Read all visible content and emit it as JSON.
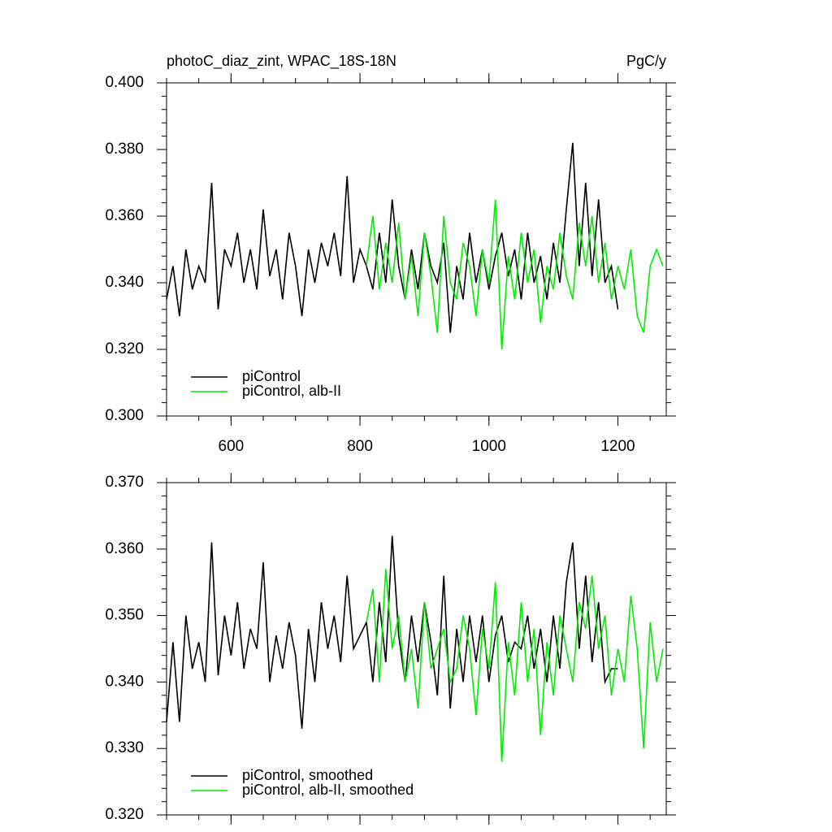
{
  "chart_data": [
    {
      "type": "line",
      "title": "photoC_diaz_zint, WPAC_18S-18N",
      "units": "PgC/y",
      "xlim": [
        500,
        1275
      ],
      "xticks": [
        600,
        800,
        1000,
        1200
      ],
      "xtick_labels": true,
      "ylim": [
        0.3,
        0.4
      ],
      "yticks": [
        {
          "value": 0.3,
          "label": "0.300"
        },
        {
          "value": 0.32,
          "label": "0.320"
        },
        {
          "value": 0.34,
          "label": "0.340"
        },
        {
          "value": 0.36,
          "label": "0.360"
        },
        {
          "value": 0.38,
          "label": "0.380"
        },
        {
          "value": 0.4,
          "label": "0.400"
        }
      ],
      "series": [
        {
          "name": "piControl",
          "color": "#000000",
          "x": [
            500,
            510,
            520,
            530,
            540,
            550,
            560,
            570,
            580,
            590,
            600,
            610,
            620,
            630,
            640,
            650,
            660,
            670,
            680,
            690,
            700,
            710,
            720,
            730,
            740,
            750,
            760,
            770,
            780,
            790,
            800,
            810,
            820,
            830,
            840,
            850,
            860,
            870,
            880,
            890,
            900,
            910,
            920,
            930,
            940,
            950,
            960,
            970,
            980,
            990,
            1000,
            1010,
            1020,
            1030,
            1040,
            1050,
            1060,
            1070,
            1080,
            1090,
            1100,
            1110,
            1120,
            1130,
            1140,
            1150,
            1160,
            1170,
            1180,
            1190,
            1200
          ],
          "values": [
            0.335,
            0.345,
            0.33,
            0.35,
            0.338,
            0.345,
            0.34,
            0.37,
            0.332,
            0.35,
            0.345,
            0.355,
            0.34,
            0.35,
            0.338,
            0.362,
            0.342,
            0.35,
            0.335,
            0.355,
            0.345,
            0.33,
            0.35,
            0.34,
            0.352,
            0.345,
            0.355,
            0.342,
            0.372,
            0.34,
            0.35,
            0.345,
            0.338,
            0.355,
            0.34,
            0.365,
            0.345,
            0.335,
            0.35,
            0.338,
            0.355,
            0.345,
            0.34,
            0.352,
            0.325,
            0.345,
            0.335,
            0.355,
            0.34,
            0.35,
            0.338,
            0.348,
            0.355,
            0.342,
            0.35,
            0.335,
            0.355,
            0.34,
            0.348,
            0.335,
            0.352,
            0.34,
            0.362,
            0.382,
            0.345,
            0.37,
            0.342,
            0.365,
            0.34,
            0.345,
            0.332
          ]
        },
        {
          "name": "piControl, alb-II",
          "color": "#00ee00",
          "x": [
            810,
            820,
            830,
            840,
            850,
            860,
            870,
            880,
            890,
            900,
            910,
            920,
            930,
            940,
            950,
            960,
            970,
            980,
            990,
            1000,
            1010,
            1020,
            1030,
            1040,
            1050,
            1060,
            1070,
            1080,
            1090,
            1100,
            1110,
            1120,
            1130,
            1140,
            1150,
            1160,
            1170,
            1180,
            1190,
            1200,
            1210,
            1220,
            1230,
            1240,
            1250,
            1260,
            1270
          ],
          "values": [
            0.345,
            0.36,
            0.338,
            0.352,
            0.34,
            0.358,
            0.335,
            0.348,
            0.33,
            0.355,
            0.342,
            0.325,
            0.36,
            0.34,
            0.335,
            0.352,
            0.345,
            0.33,
            0.35,
            0.34,
            0.365,
            0.32,
            0.348,
            0.335,
            0.355,
            0.34,
            0.35,
            0.328,
            0.345,
            0.338,
            0.355,
            0.342,
            0.335,
            0.358,
            0.345,
            0.36,
            0.34,
            0.352,
            0.335,
            0.345,
            0.338,
            0.35,
            0.33,
            0.325,
            0.345,
            0.35,
            0.345
          ]
        }
      ]
    },
    {
      "type": "line",
      "xlim": [
        500,
        1275
      ],
      "xticks": [
        600,
        800,
        1000,
        1200
      ],
      "xtick_labels": false,
      "ylim": [
        0.32,
        0.37
      ],
      "yticks": [
        {
          "value": 0.32,
          "label": "0.320"
        },
        {
          "value": 0.33,
          "label": "0.330"
        },
        {
          "value": 0.34,
          "label": "0.340"
        },
        {
          "value": 0.35,
          "label": "0.350"
        },
        {
          "value": 0.36,
          "label": "0.360"
        },
        {
          "value": 0.37,
          "label": "0.370"
        }
      ],
      "series": [
        {
          "name": "piControl, smoothed",
          "color": "#000000",
          "x": [
            500,
            510,
            520,
            530,
            540,
            550,
            560,
            570,
            580,
            590,
            600,
            610,
            620,
            630,
            640,
            650,
            660,
            670,
            680,
            690,
            700,
            710,
            720,
            730,
            740,
            750,
            760,
            770,
            780,
            790,
            800,
            810,
            820,
            830,
            840,
            850,
            860,
            870,
            880,
            890,
            900,
            910,
            920,
            930,
            940,
            950,
            960,
            970,
            980,
            990,
            1000,
            1010,
            1020,
            1030,
            1040,
            1050,
            1060,
            1070,
            1080,
            1090,
            1100,
            1110,
            1120,
            1130,
            1140,
            1150,
            1160,
            1170,
            1180,
            1190,
            1200
          ],
          "values": [
            0.334,
            0.346,
            0.334,
            0.35,
            0.342,
            0.346,
            0.34,
            0.361,
            0.341,
            0.35,
            0.344,
            0.352,
            0.342,
            0.348,
            0.345,
            0.358,
            0.34,
            0.347,
            0.342,
            0.349,
            0.344,
            0.333,
            0.348,
            0.34,
            0.352,
            0.345,
            0.35,
            0.343,
            0.356,
            0.345,
            0.347,
            0.349,
            0.34,
            0.352,
            0.343,
            0.362,
            0.347,
            0.34,
            0.35,
            0.343,
            0.352,
            0.346,
            0.338,
            0.356,
            0.336,
            0.348,
            0.34,
            0.35,
            0.343,
            0.35,
            0.34,
            0.347,
            0.35,
            0.343,
            0.346,
            0.345,
            0.35,
            0.342,
            0.348,
            0.34,
            0.35,
            0.342,
            0.355,
            0.361,
            0.345,
            0.356,
            0.343,
            0.352,
            0.34,
            0.342,
            0.342
          ]
        },
        {
          "name": "piControl, alb-II, smoothed",
          "color": "#00ee00",
          "x": [
            810,
            820,
            830,
            840,
            850,
            860,
            870,
            880,
            890,
            900,
            910,
            920,
            930,
            940,
            950,
            960,
            970,
            980,
            990,
            1000,
            1010,
            1020,
            1030,
            1040,
            1050,
            1060,
            1070,
            1080,
            1090,
            1100,
            1110,
            1120,
            1130,
            1140,
            1150,
            1160,
            1170,
            1180,
            1190,
            1200,
            1210,
            1220,
            1230,
            1240,
            1250,
            1260,
            1270
          ],
          "values": [
            0.349,
            0.354,
            0.34,
            0.357,
            0.345,
            0.35,
            0.34,
            0.345,
            0.336,
            0.352,
            0.342,
            0.345,
            0.348,
            0.34,
            0.342,
            0.35,
            0.345,
            0.335,
            0.348,
            0.342,
            0.355,
            0.328,
            0.346,
            0.338,
            0.352,
            0.34,
            0.348,
            0.332,
            0.346,
            0.338,
            0.35,
            0.345,
            0.34,
            0.352,
            0.348,
            0.356,
            0.345,
            0.35,
            0.338,
            0.345,
            0.34,
            0.353,
            0.345,
            0.33,
            0.349,
            0.34,
            0.345
          ]
        }
      ]
    }
  ]
}
